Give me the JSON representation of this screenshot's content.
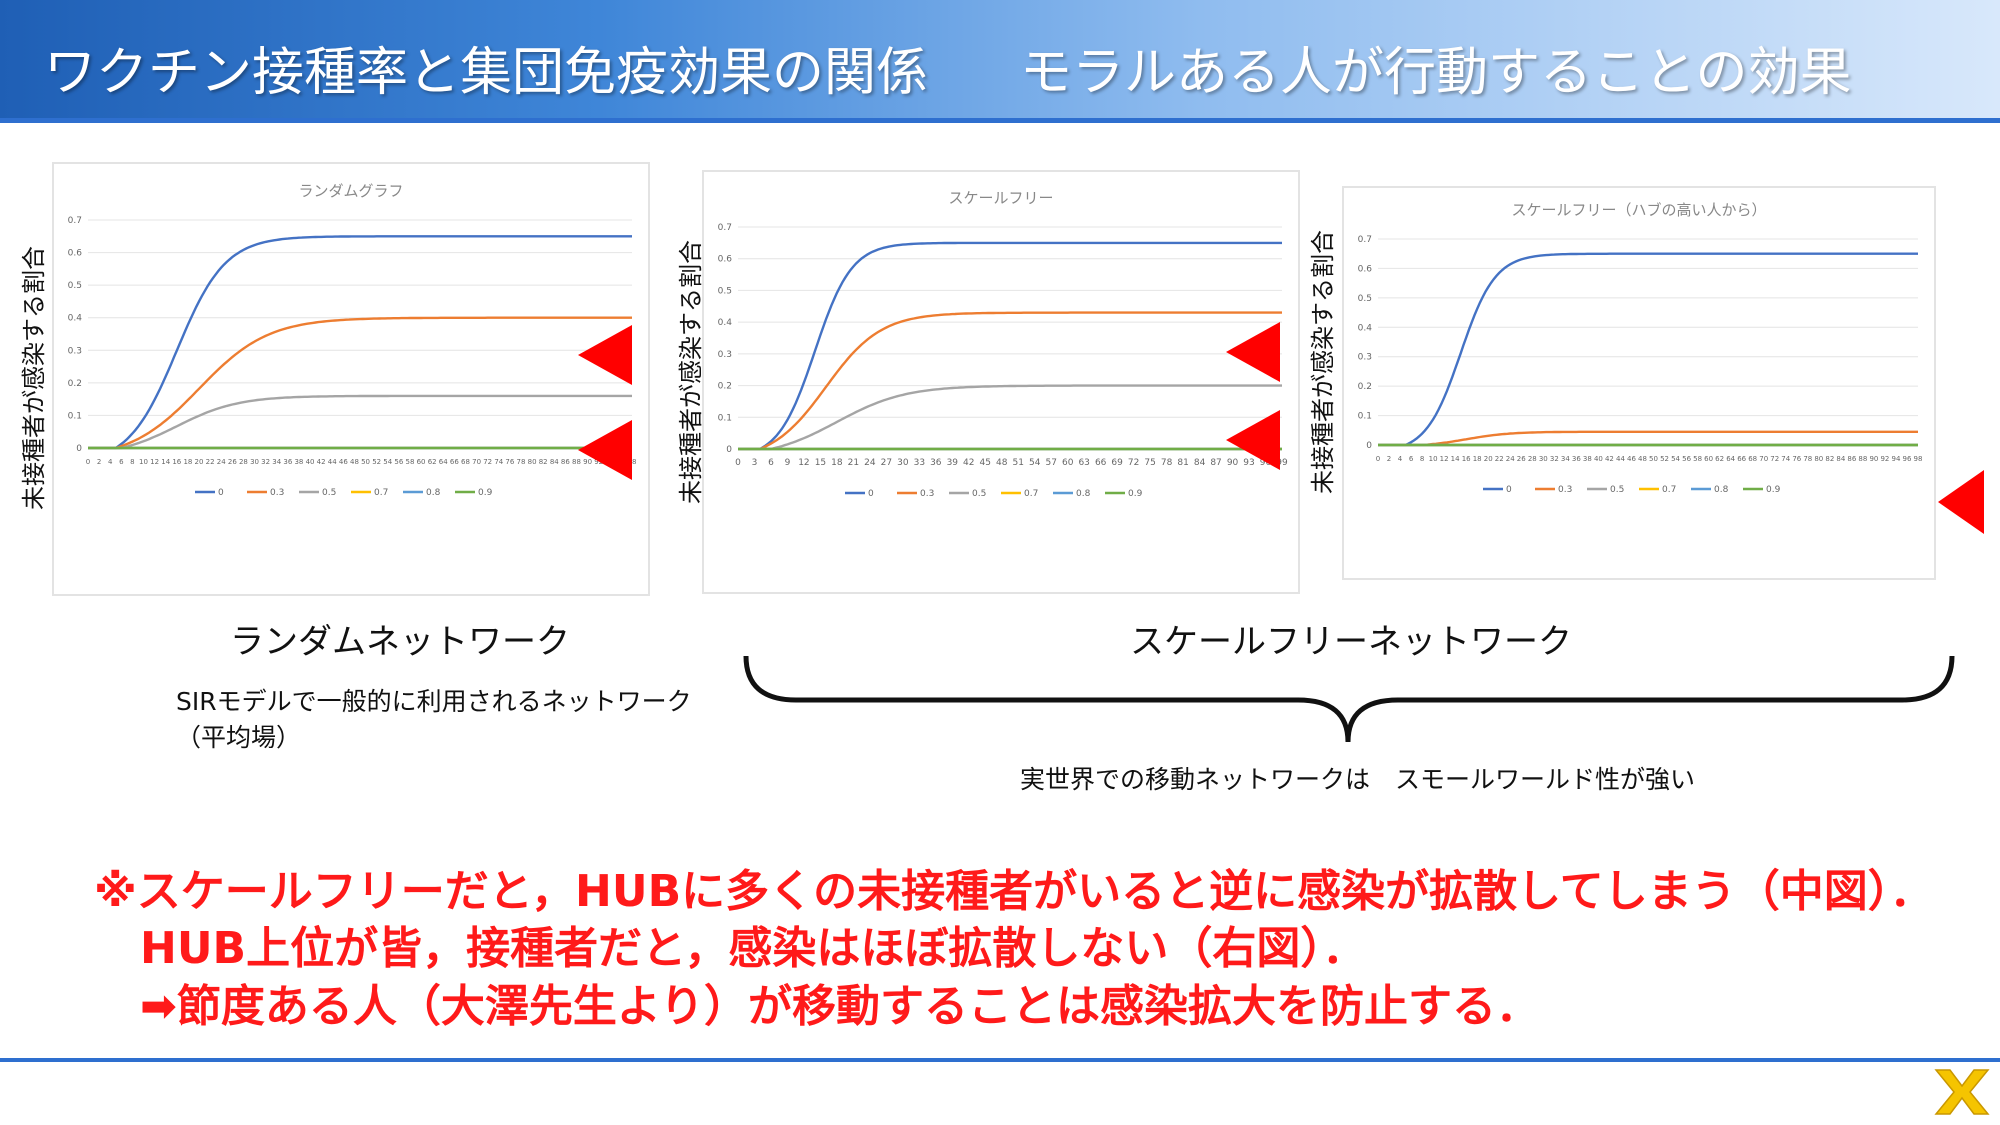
{
  "header": {
    "title_left": "ワクチン接種率と集団免疫効果の関係",
    "title_right": "モラルある人が行動することの効果"
  },
  "labels": {
    "ylabel": "未接種者が感染する割合",
    "random_network": "ランダムネットワーク",
    "scalefree_network": "スケールフリーネットワーク",
    "sir_note_line1": "SIRモデルで一般的に利用されるネットワーク",
    "sir_note_line2": "（平均場）",
    "realworld_note": "実世界での移動ネットワークは　スモールワールド性が強い"
  },
  "red_notes": {
    "line1": "※スケールフリーだと，HUBに多くの未接種者がいると逆に感染が拡散してしまう（中図）．",
    "line2": "HUB上位が皆，接種者だと，感染はほぼ拡散しない（右図）．",
    "line3": "➡節度ある人（大澤先生より）が移動することは感染拡大を防止する．"
  },
  "colors": {
    "s0": "#4472c4",
    "s03": "#ed7d31",
    "s05": "#a5a5a5",
    "s07": "#ffc000",
    "s08": "#5b9bd5",
    "s09": "#70ad47",
    "marker": "#ff0000",
    "header_line": "#2e6fcf"
  },
  "chart_data": [
    {
      "type": "line",
      "title": "ランダムグラフ",
      "ylim": [
        0,
        0.7
      ],
      "yticks": [
        "0",
        "0.1",
        "0.2",
        "0.3",
        "0.4",
        "0.5",
        "0.6",
        "0.7"
      ],
      "x_tick_start": 0,
      "x_tick_step": 2,
      "x_tick_end": 98,
      "legend": [
        "0",
        "0.3",
        "0.5",
        "0.7",
        "0.8",
        "0.9"
      ],
      "legend_position": "bottom",
      "series": [
        {
          "name": "0",
          "final": 0.65,
          "onset": 5,
          "k": 0.23,
          "mid": 16
        },
        {
          "name": "0.3",
          "final": 0.4,
          "onset": 5,
          "k": 0.16,
          "mid": 20
        },
        {
          "name": "0.5",
          "final": 0.16,
          "onset": 6,
          "k": 0.18,
          "mid": 16
        },
        {
          "name": "0.7",
          "final": 0
        },
        {
          "name": "0.8",
          "final": 0
        },
        {
          "name": "0.9",
          "final": 0
        }
      ]
    },
    {
      "type": "line",
      "title": "スケールフリー",
      "ylim": [
        0,
        0.7
      ],
      "yticks": [
        "0",
        "0.1",
        "0.2",
        "0.3",
        "0.4",
        "0.5",
        "0.6",
        "0.7"
      ],
      "x_tick_start": 0,
      "x_tick_step": 3,
      "x_tick_end": 99,
      "legend": [
        "0",
        "0.3",
        "0.5",
        "0.7",
        "0.8",
        "0.9"
      ],
      "legend_position": "bottom",
      "series": [
        {
          "name": "0",
          "final": 0.65,
          "onset": 4,
          "k": 0.3,
          "mid": 14
        },
        {
          "name": "0.3",
          "final": 0.43,
          "onset": 4,
          "k": 0.2,
          "mid": 16
        },
        {
          "name": "0.5",
          "final": 0.2,
          "onset": 6,
          "k": 0.16,
          "mid": 18
        },
        {
          "name": "0.7",
          "final": 0
        },
        {
          "name": "0.8",
          "final": 0
        },
        {
          "name": "0.9",
          "final": 0
        }
      ]
    },
    {
      "type": "line",
      "title": "スケールフリー（ハブの高い人から）",
      "ylim": [
        0,
        0.7
      ],
      "yticks": [
        "0",
        "0.1",
        "0.2",
        "0.3",
        "0.4",
        "0.5",
        "0.6",
        "0.7"
      ],
      "x_tick_start": 0,
      "x_tick_step": 2,
      "x_tick_end": 98,
      "legend": [
        "0",
        "0.3",
        "0.5",
        "0.7",
        "0.8",
        "0.9"
      ],
      "legend_position": "bottom",
      "series": [
        {
          "name": "0",
          "final": 0.65,
          "onset": 5,
          "k": 0.32,
          "mid": 15
        },
        {
          "name": "0.3",
          "final": 0.045,
          "onset": 8,
          "k": 0.25,
          "mid": 16
        },
        {
          "name": "0.5",
          "final": 0
        },
        {
          "name": "0.7",
          "final": 0
        },
        {
          "name": "0.8",
          "final": 0
        },
        {
          "name": "0.9",
          "final": 0
        }
      ]
    }
  ]
}
